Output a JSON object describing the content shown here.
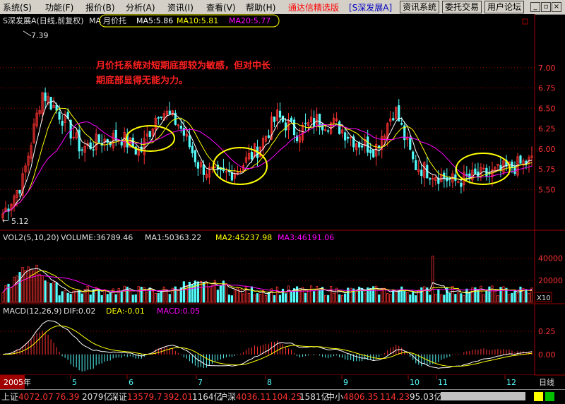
{
  "menu": {
    "items": [
      "系统(S)",
      "功能(F)",
      "报价(B)",
      "分析(A)",
      "资讯(I)",
      "查看(V)",
      "帮助(H)"
    ],
    "app_title": "通达信精选版",
    "stock_title": "[S深发展A]",
    "buttons": [
      "资讯系统",
      "委托交易",
      "用户论坛"
    ]
  },
  "main_panel": {
    "title": "S深发展A(日线,前复权)",
    "indicator_name": "MA",
    "highlight_label": "月价托",
    "ma5": "MA5:5.86",
    "ma10": "MA10:5.81",
    "ma20": "MA20:5.77",
    "high_label": "7.39",
    "low_label": "5.12",
    "annotation_line1": "月价托系统对短期底部较为敏感，但对中长",
    "annotation_line2": "期底部显得无能为力。"
  },
  "volume_panel": {
    "title": "VOL2(5,10,20)",
    "volume": "VOLUME:36789.46",
    "ma1": "MA1:50363.22",
    "ma2": "MA2:45237.98",
    "ma3": "MA3:46191.06",
    "unit": "X10"
  },
  "macd_panel": {
    "title": "MACD(12,26,9)",
    "dif": "DIF:0.02",
    "dea": "DEA:-0.01",
    "macd": "MACD:0.05"
  },
  "x_axis": {
    "labels": [
      "2005年",
      "5",
      "6",
      "7",
      "8",
      "9",
      "10",
      "11",
      "12"
    ],
    "period": "日线"
  },
  "status": {
    "sh_name": "上证",
    "sh_value": "4072.07",
    "sh_change": "76.39",
    "sh_amount": "2079亿",
    "sz_name": "深证",
    "sz_value": "13579.7",
    "sz_change": "392.01",
    "sz_amount": "1164亿",
    "hs_name": "沪深",
    "hs_value": "4036.11",
    "hs_change": "104.25",
    "hs_amount": "1581亿",
    "zx_name": "中小",
    "zx_value": "4806.35",
    "zx_change": "114.23",
    "zx_amount": "95.03亿"
  },
  "colors": {
    "up": "#ff3232",
    "down": "#54fcfc",
    "ma_short": "#ffffff",
    "ma_mid": "#ffff00",
    "ma_long": "#ff00ff",
    "grid": "#a00000"
  },
  "chart_data": {
    "type": "candlestick",
    "price_axis": {
      "ticks": [
        5.5,
        5.75,
        6.0,
        6.25,
        6.5,
        6.75,
        7.0
      ],
      "range": [
        5.05,
        7.45
      ]
    },
    "volume_axis": {
      "ticks": [
        20000,
        40000
      ],
      "unit": "X10"
    },
    "macd_axis": {
      "ticks": [
        0.0,
        0.25
      ]
    },
    "x_labels": [
      "2005年",
      "5",
      "6",
      "7",
      "8",
      "9",
      "10",
      "11",
      "12"
    ],
    "high": 7.39,
    "low": 5.12,
    "series_keypoints": [
      5.2,
      5.6,
      6.7,
      6.4,
      6.0,
      6.1,
      6.15,
      5.95,
      6.5,
      6.3,
      5.8,
      5.65,
      5.75,
      6.0,
      6.4,
      6.2,
      6.35,
      6.3,
      6.1,
      6.0,
      6.5,
      5.8,
      5.7,
      5.6,
      5.65,
      5.7,
      5.78,
      5.85
    ]
  }
}
